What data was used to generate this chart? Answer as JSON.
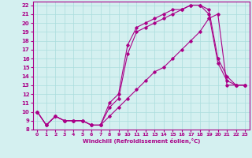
{
  "xlabel": "Windchill (Refroidissement éolien,°C)",
  "bg_color": "#d4f0f0",
  "line_color": "#aa0088",
  "grid_color": "#aadddd",
  "xlim": [
    -0.5,
    23.5
  ],
  "ylim": [
    8,
    22.4
  ],
  "yticks": [
    8,
    9,
    10,
    11,
    12,
    13,
    14,
    15,
    16,
    17,
    18,
    19,
    20,
    21,
    22
  ],
  "xticks": [
    0,
    1,
    2,
    3,
    4,
    5,
    6,
    7,
    8,
    9,
    10,
    11,
    12,
    13,
    14,
    15,
    16,
    17,
    18,
    19,
    20,
    21,
    22,
    23
  ],
  "series": [
    {
      "x": [
        0,
        1,
        2,
        3,
        4,
        5,
        6,
        7,
        8,
        9,
        10,
        11,
        12,
        13,
        14,
        15,
        16,
        17,
        18,
        19,
        20,
        21,
        22,
        23
      ],
      "y": [
        10.0,
        8.5,
        9.5,
        9.0,
        9.0,
        9.0,
        8.5,
        8.5,
        11.0,
        12.0,
        17.5,
        19.5,
        20.0,
        20.5,
        21.0,
        21.5,
        21.5,
        22.0,
        22.0,
        21.5,
        16.0,
        14.0,
        13.0,
        13.0
      ]
    },
    {
      "x": [
        0,
        1,
        2,
        3,
        4,
        5,
        6,
        7,
        8,
        9,
        10,
        11,
        12,
        13,
        14,
        15,
        16,
        17,
        18,
        19,
        20,
        21,
        22,
        23
      ],
      "y": [
        10.0,
        8.5,
        9.5,
        9.0,
        9.0,
        9.0,
        8.5,
        8.5,
        10.5,
        11.5,
        16.5,
        19.0,
        19.5,
        20.0,
        20.5,
        21.0,
        21.5,
        22.0,
        22.0,
        21.0,
        15.5,
        13.5,
        13.0,
        13.0
      ]
    },
    {
      "x": [
        0,
        1,
        2,
        3,
        4,
        5,
        6,
        7,
        8,
        9,
        10,
        11,
        12,
        13,
        14,
        15,
        16,
        17,
        18,
        19,
        20,
        21,
        22,
        23
      ],
      "y": [
        10.0,
        8.5,
        9.5,
        9.0,
        9.0,
        9.0,
        8.5,
        8.5,
        9.5,
        10.5,
        11.5,
        12.5,
        13.5,
        14.5,
        15.0,
        16.0,
        17.0,
        18.0,
        19.0,
        20.5,
        21.0,
        13.0,
        13.0,
        13.0
      ]
    }
  ]
}
